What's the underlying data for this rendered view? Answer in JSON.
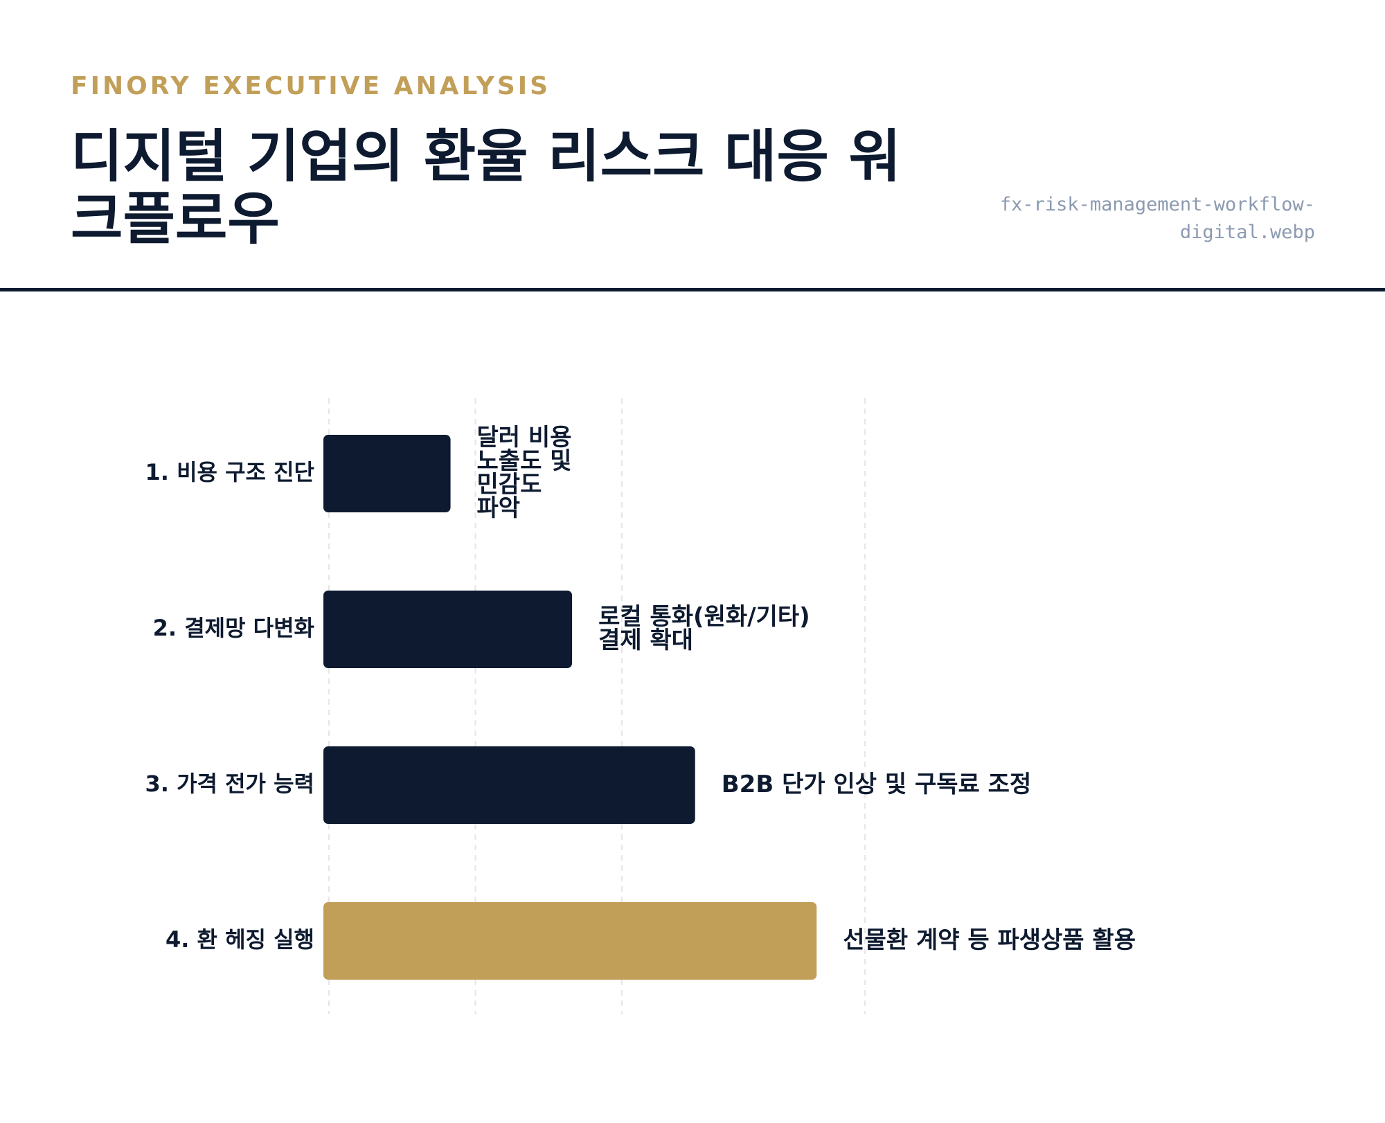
{
  "header": {
    "kicker": "FINORY EXECUTIVE ANALYSIS",
    "title": "디지털 기업의 환율 리스크 대응 워크플로우",
    "filename": "fx-risk-management-workflow-digital.webp"
  },
  "chart_data": {
    "type": "bar",
    "orientation": "horizontal",
    "title": "",
    "xlabel": "",
    "ylabel": "",
    "xlim": [
      0,
      5
    ],
    "grid": true,
    "gridlines": [
      0,
      1,
      2,
      3.66
    ],
    "categories": [
      "1. 비용 구조 진단",
      "2. 결제망 다변화",
      "3. 가격 전가 능력",
      "4. 환 헤징 실행"
    ],
    "values": [
      0.83,
      1.66,
      2.5,
      3.33
    ],
    "bar_labels": [
      [
        "달러 비용",
        "노출도 및",
        "민감도",
        "파악"
      ],
      [
        "로컬 통화(원화/기타)",
        "결제 확대"
      ],
      [
        "B2B 단가 인상 및 구독료 조정"
      ],
      [
        "선물환 계약 등 파생상품 활용"
      ]
    ],
    "colors": [
      "#0d1a2f",
      "#0d1a2f",
      "#0d1a2f",
      "#c29f58"
    ]
  }
}
